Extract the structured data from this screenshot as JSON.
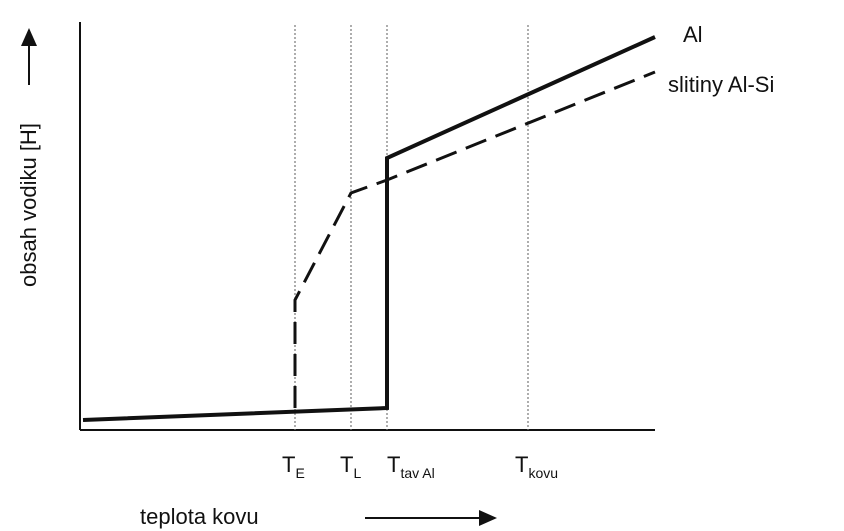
{
  "y_axis_label": "obsah vodiku [H]",
  "x_axis_label": "teplota kovu",
  "legend": {
    "solid": "Al",
    "dashed": "slitiny Al-Si"
  },
  "x_labels": [
    {
      "main": "T",
      "sub": "E"
    },
    {
      "main": "T",
      "sub": "L"
    },
    {
      "main": "T",
      "sub": "tav Al"
    },
    {
      "main": "T",
      "sub": "kovu"
    }
  ]
}
